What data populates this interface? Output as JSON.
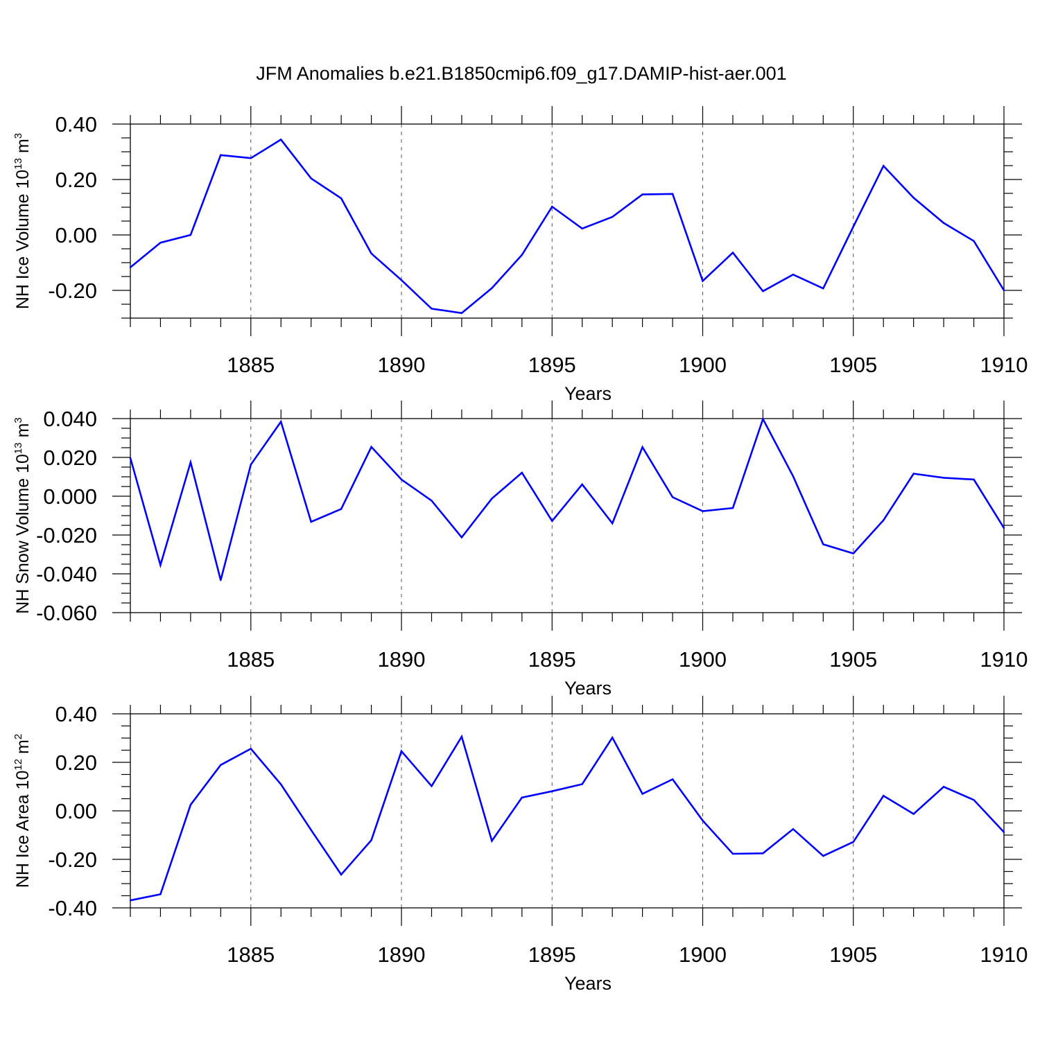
{
  "chart_data": [
    {
      "type": "line",
      "title": "JFM Anomalies b.e21.B1850cmip6.f09_g17.DAMIP-hist-aer.001",
      "xlabel": "Years",
      "ylabel_text": "NH Ice Volume 10",
      "ylabel_sup": "13",
      "ylabel_unit": " m",
      "ylabel_unit_sup": "3",
      "xlim": [
        1881,
        1910
      ],
      "ylim": [
        -0.3,
        0.4
      ],
      "x_ticks": [
        1885,
        1890,
        1895,
        1900,
        1905,
        1910
      ],
      "y_ticks": [
        0.4,
        0.2,
        0.0,
        -0.2
      ],
      "y_tick_labels": [
        "0.40",
        "0.20",
        "0.00",
        "-0.20"
      ],
      "grid": "vertical dashed at major ticks",
      "series": [
        {
          "color": "#0000ff",
          "x": [
            1881,
            1882,
            1883,
            1884,
            1885,
            1886,
            1887,
            1888,
            1889,
            1890,
            1891,
            1892,
            1893,
            1894,
            1895,
            1896,
            1897,
            1898,
            1899,
            1900,
            1901,
            1902,
            1903,
            1904,
            1905,
            1906,
            1907,
            1908,
            1909,
            1910
          ],
          "values": [
            -0.117,
            -0.028,
            0.0,
            0.288,
            0.277,
            0.344,
            0.204,
            0.132,
            -0.067,
            -0.163,
            -0.266,
            -0.282,
            -0.192,
            -0.072,
            0.102,
            0.023,
            0.065,
            0.146,
            0.148,
            -0.166,
            -0.064,
            -0.203,
            -0.143,
            -0.193,
            0.03,
            0.249,
            0.134,
            0.043,
            -0.022,
            -0.2
          ]
        }
      ]
    },
    {
      "type": "line",
      "title": "",
      "xlabel": "Years",
      "ylabel_text": "NH Snow Volume 10",
      "ylabel_sup": "13",
      "ylabel_unit": " m",
      "ylabel_unit_sup": "3",
      "xlim": [
        1881,
        1910
      ],
      "ylim": [
        -0.06,
        0.04
      ],
      "x_ticks": [
        1885,
        1890,
        1895,
        1900,
        1905,
        1910
      ],
      "y_ticks": [
        0.04,
        0.02,
        0.0,
        -0.02,
        -0.04,
        -0.06
      ],
      "y_tick_labels": [
        "0.040",
        "0.020",
        "0.000",
        "-0.020",
        "-0.040",
        "-0.060"
      ],
      "grid": "vertical dashed at major ticks",
      "series": [
        {
          "color": "#0000ff",
          "x": [
            1881,
            1882,
            1883,
            1884,
            1885,
            1886,
            1887,
            1888,
            1889,
            1890,
            1891,
            1892,
            1893,
            1894,
            1895,
            1896,
            1897,
            1898,
            1899,
            1900,
            1901,
            1902,
            1903,
            1904,
            1905,
            1906,
            1907,
            1908,
            1909,
            1910
          ],
          "values": [
            0.0197,
            -0.0355,
            0.0175,
            -0.0433,
            0.0163,
            0.0384,
            -0.0132,
            -0.0066,
            0.0254,
            0.0086,
            -0.0023,
            -0.0212,
            -0.0012,
            0.0121,
            -0.0128,
            0.0061,
            -0.014,
            0.0253,
            -0.0005,
            -0.0077,
            -0.0061,
            0.0398,
            0.0103,
            -0.0248,
            -0.0295,
            -0.0124,
            0.0116,
            0.0095,
            0.0086,
            -0.0164
          ]
        }
      ]
    },
    {
      "type": "line",
      "title": "",
      "xlabel": "Years",
      "ylabel_text": "NH Ice Area 10",
      "ylabel_sup": "12",
      "ylabel_unit": " m",
      "ylabel_unit_sup": "2",
      "xlim": [
        1881,
        1910
      ],
      "ylim": [
        -0.4,
        0.4
      ],
      "x_ticks": [
        1885,
        1890,
        1895,
        1900,
        1905,
        1910
      ],
      "y_ticks": [
        0.4,
        0.2,
        0.0,
        -0.2,
        -0.4
      ],
      "y_tick_labels": [
        "0.40",
        "0.20",
        "0.00",
        "-0.20",
        "-0.40"
      ],
      "grid": "vertical dashed at major ticks",
      "series": [
        {
          "color": "#0000ff",
          "x": [
            1881,
            1882,
            1883,
            1884,
            1885,
            1886,
            1887,
            1888,
            1889,
            1890,
            1891,
            1892,
            1893,
            1894,
            1895,
            1896,
            1897,
            1898,
            1899,
            1900,
            1901,
            1902,
            1903,
            1904,
            1905,
            1906,
            1907,
            1908,
            1909,
            1910
          ],
          "values": [
            -0.369,
            -0.344,
            0.025,
            0.189,
            0.256,
            0.109,
            -0.079,
            -0.263,
            -0.121,
            0.246,
            0.102,
            0.306,
            -0.124,
            0.055,
            0.081,
            0.11,
            0.302,
            0.07,
            0.13,
            -0.04,
            -0.177,
            -0.175,
            -0.075,
            -0.186,
            -0.128,
            0.062,
            -0.013,
            0.099,
            0.045,
            -0.088
          ]
        }
      ]
    }
  ]
}
